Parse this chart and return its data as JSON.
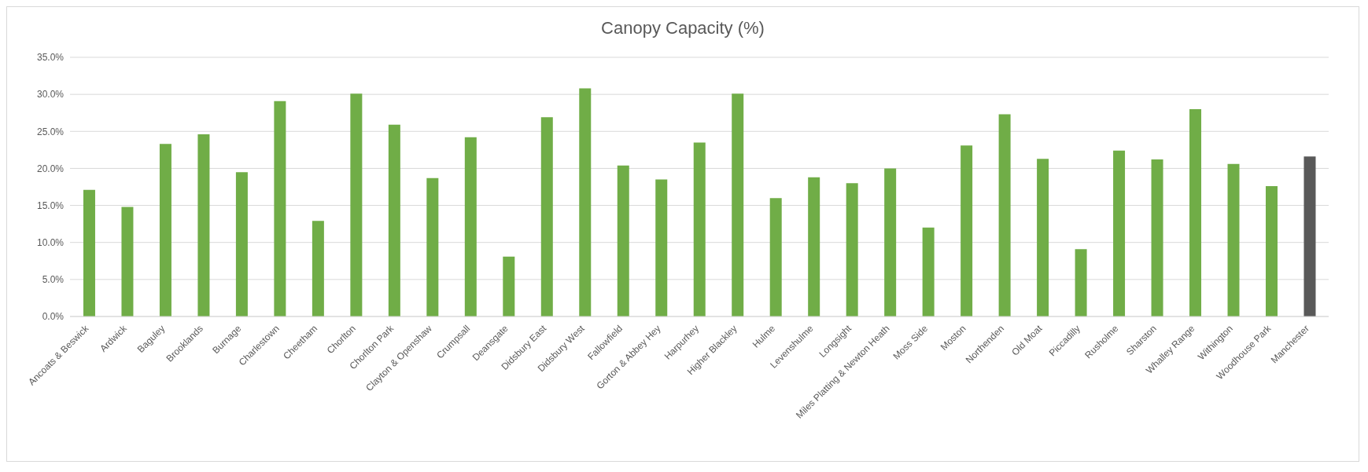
{
  "chart_data": {
    "type": "bar",
    "title": "Canopy Capacity (%)",
    "categories": [
      "Ancoats & Beswick",
      "Ardwick",
      "Baguley",
      "Brooklands",
      "Burnage",
      "Charlestown",
      "Cheetham",
      "Chorlton",
      "Chorlton Park",
      "Clayton & Openshaw",
      "Crumpsall",
      "Deansgate",
      "Didsbury East",
      "Didsbury West",
      "Fallowfield",
      "Gorton & Abbey Hey",
      "Harpurhey",
      "Higher Blackley",
      "Hulme",
      "Levenshulme",
      "Longsight",
      "Miles Platting & Newton Heath",
      "Moss Side",
      "Moston",
      "Northenden",
      "Old Moat",
      "Piccadilly",
      "Rusholme",
      "Sharston",
      "Whalley Range",
      "Withington",
      "Woodhouse Park",
      "Manchester"
    ],
    "values": [
      17.1,
      14.8,
      23.3,
      24.6,
      19.5,
      29.1,
      12.9,
      30.1,
      25.9,
      18.7,
      24.2,
      8.1,
      26.9,
      30.8,
      20.4,
      18.5,
      23.5,
      30.1,
      16.0,
      18.8,
      18.0,
      20.0,
      12.0,
      23.1,
      27.3,
      21.3,
      9.1,
      22.4,
      21.2,
      28.0,
      20.6,
      17.6,
      21.6
    ],
    "colors": [
      "#70ad47",
      "#70ad47",
      "#70ad47",
      "#70ad47",
      "#70ad47",
      "#70ad47",
      "#70ad47",
      "#70ad47",
      "#70ad47",
      "#70ad47",
      "#70ad47",
      "#70ad47",
      "#70ad47",
      "#70ad47",
      "#70ad47",
      "#70ad47",
      "#70ad47",
      "#70ad47",
      "#70ad47",
      "#70ad47",
      "#70ad47",
      "#70ad47",
      "#70ad47",
      "#70ad47",
      "#70ad47",
      "#70ad47",
      "#70ad47",
      "#70ad47",
      "#70ad47",
      "#70ad47",
      "#70ad47",
      "#70ad47",
      "#595959"
    ],
    "ylim": [
      0,
      35
    ],
    "yticks": [
      {
        "value": 0,
        "label": "0.0%"
      },
      {
        "value": 5,
        "label": "5.0%"
      },
      {
        "value": 10,
        "label": "10.0%"
      },
      {
        "value": 15,
        "label": "15.0%"
      },
      {
        "value": 20,
        "label": "20.0%"
      },
      {
        "value": 25,
        "label": "25.0%"
      },
      {
        "value": 30,
        "label": "30.0%"
      },
      {
        "value": 35,
        "label": "35.0%"
      }
    ],
    "grid": "y"
  }
}
